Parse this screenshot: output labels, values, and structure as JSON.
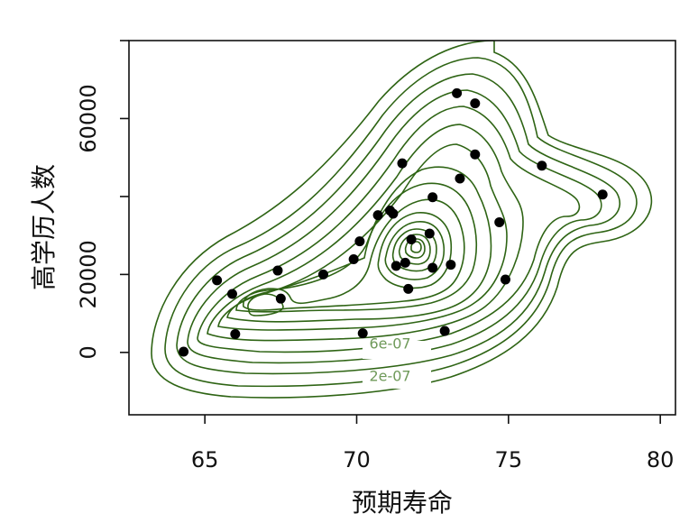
{
  "chart_data": {
    "type": "contour+scatter",
    "xlabel": "预期寿命",
    "ylabel": "高学历人数",
    "xlim": [
      62.5,
      80.5
    ],
    "ylim": [
      -16000,
      80000
    ],
    "xticks": [
      "65",
      "70",
      "75",
      "80"
    ],
    "yticks": [
      "0",
      "20000",
      "60000"
    ],
    "ytick_marks": [
      0,
      20000,
      40000,
      60000,
      80000
    ],
    "colors": {
      "contour": "#2e6414",
      "contour_label": "#6f9a5a",
      "points": "#000000"
    },
    "contour_labels": [
      {
        "text": "6e-07",
        "x": 71.1,
        "y": 1000
      },
      {
        "text": "2e-07",
        "x": 71.1,
        "y": -7300
      }
    ],
    "points": [
      {
        "x": 64.3,
        "y": 200
      },
      {
        "x": 65.4,
        "y": 18500
      },
      {
        "x": 65.9,
        "y": 15000
      },
      {
        "x": 66.0,
        "y": 4700
      },
      {
        "x": 67.4,
        "y": 21000
      },
      {
        "x": 67.5,
        "y": 13800
      },
      {
        "x": 68.9,
        "y": 20000
      },
      {
        "x": 69.9,
        "y": 23900
      },
      {
        "x": 70.1,
        "y": 28500
      },
      {
        "x": 70.2,
        "y": 4900
      },
      {
        "x": 70.7,
        "y": 35200
      },
      {
        "x": 71.1,
        "y": 36400
      },
      {
        "x": 71.2,
        "y": 35600
      },
      {
        "x": 71.3,
        "y": 22200
      },
      {
        "x": 71.5,
        "y": 48500
      },
      {
        "x": 71.6,
        "y": 23000
      },
      {
        "x": 71.7,
        "y": 16300
      },
      {
        "x": 71.8,
        "y": 29000
      },
      {
        "x": 72.4,
        "y": 30500
      },
      {
        "x": 72.5,
        "y": 39800
      },
      {
        "x": 72.5,
        "y": 21700
      },
      {
        "x": 72.9,
        "y": 5500
      },
      {
        "x": 73.1,
        "y": 22500
      },
      {
        "x": 73.3,
        "y": 66500
      },
      {
        "x": 73.4,
        "y": 44600
      },
      {
        "x": 73.9,
        "y": 63900
      },
      {
        "x": 73.9,
        "y": 50800
      },
      {
        "x": 74.7,
        "y": 33400
      },
      {
        "x": 74.9,
        "y": 18700
      },
      {
        "x": 76.1,
        "y": 47900
      },
      {
        "x": 78.1,
        "y": 40500
      }
    ]
  }
}
